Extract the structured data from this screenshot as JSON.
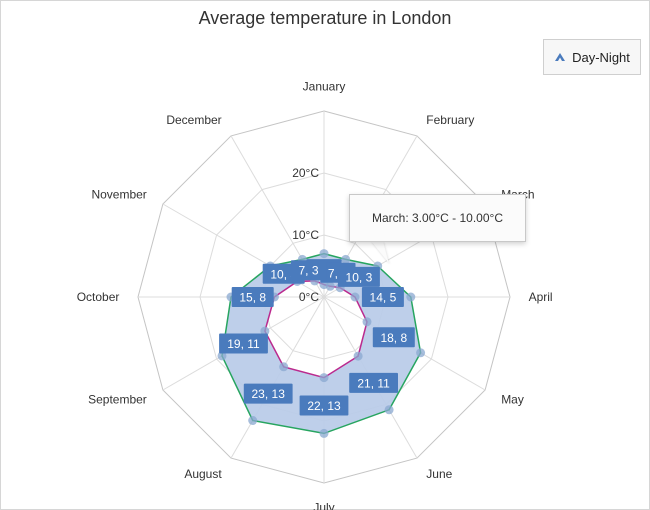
{
  "chart_data": {
    "type": "radar-range",
    "title": "Average temperature in London",
    "categories": [
      "January",
      "February",
      "March",
      "April",
      "May",
      "June",
      "July",
      "August",
      "September",
      "October",
      "November",
      "December"
    ],
    "series": [
      {
        "name": "Day-Night",
        "high": [
          7,
          7,
          10,
          14,
          18,
          21,
          22,
          23,
          19,
          15,
          10,
          7
        ],
        "low": [
          2,
          2,
          3,
          5,
          8,
          11,
          13,
          13,
          11,
          8,
          5,
          3
        ]
      }
    ],
    "axis_ticks": [
      "0°C",
      "10°C",
      "20°C"
    ],
    "ylim": [
      0,
      30
    ],
    "colors": {
      "fill": "#b8cbe8",
      "high_line": "#27a560",
      "low_line": "#bb2a8e",
      "marker": "#8aa8d0",
      "label_bg": "#4a7bbd"
    }
  },
  "tooltip": {
    "text": "March: 3.00°C - 10.00°C"
  },
  "legend": {
    "label": "Day-Night",
    "icon": "area-triangle-icon"
  }
}
